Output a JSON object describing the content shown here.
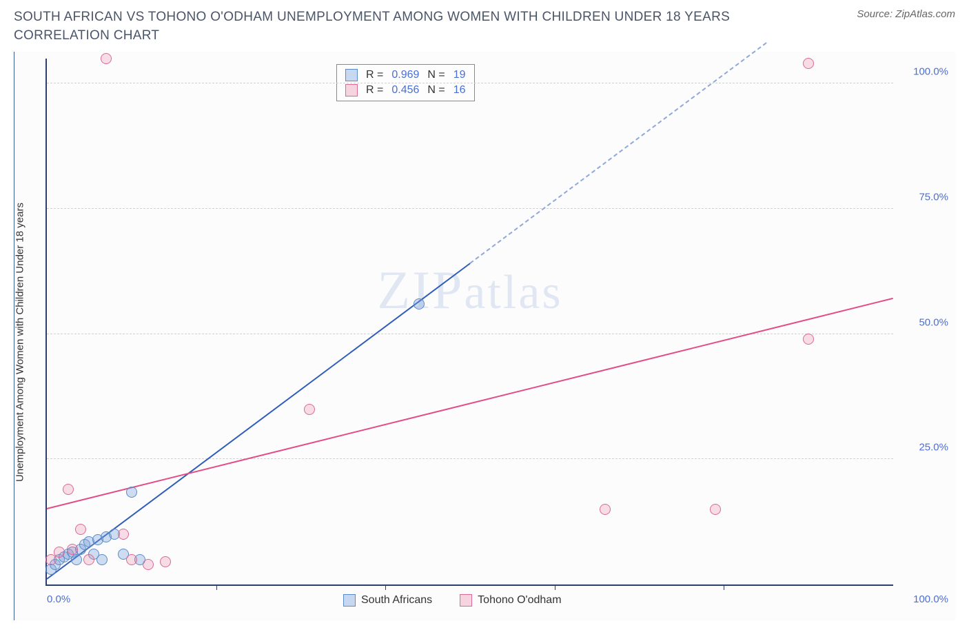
{
  "header": {
    "title": "SOUTH AFRICAN VS TOHONO O'ODHAM UNEMPLOYMENT AMONG WOMEN WITH CHILDREN UNDER 18 YEARS CORRELATION CHART",
    "source_prefix": "Source: ",
    "source_name": "ZipAtlas.com"
  },
  "chart": {
    "type": "scatter",
    "y_axis_label": "Unemployment Among Women with Children Under 18 years",
    "x_range": [
      0,
      100
    ],
    "y_range": [
      0,
      105
    ],
    "y_ticks": [
      {
        "value": 25,
        "label": "25.0%"
      },
      {
        "value": 50,
        "label": "50.0%"
      },
      {
        "value": 75,
        "label": "75.0%"
      },
      {
        "value": 100,
        "label": "100.0%"
      }
    ],
    "x_ticks_minor": [
      20,
      40,
      60,
      80
    ],
    "x_tick_labels": {
      "min": "0.0%",
      "max": "100.0%"
    },
    "background_color": "#fcfcfd",
    "grid_color": "#d0d0d0",
    "axis_color": "#2c3e6b",
    "tick_label_color": "#4a6fd4",
    "series": [
      {
        "name": "South Africans",
        "color_fill": "rgba(120,160,220,0.35)",
        "color_stroke": "#5a8ac8",
        "line_color": "#2e5cb8",
        "R": "0.969",
        "N": "19",
        "points": [
          {
            "x": 0.5,
            "y": 3
          },
          {
            "x": 1,
            "y": 4
          },
          {
            "x": 1.5,
            "y": 5
          },
          {
            "x": 2,
            "y": 5.5
          },
          {
            "x": 2.5,
            "y": 6
          },
          {
            "x": 3,
            "y": 6.5
          },
          {
            "x": 3.5,
            "y": 5
          },
          {
            "x": 4,
            "y": 7
          },
          {
            "x": 4.5,
            "y": 8
          },
          {
            "x": 5,
            "y": 8.5
          },
          {
            "x": 5.5,
            "y": 6
          },
          {
            "x": 6,
            "y": 9
          },
          {
            "x": 6.5,
            "y": 5
          },
          {
            "x": 7,
            "y": 9.5
          },
          {
            "x": 8,
            "y": 10
          },
          {
            "x": 9,
            "y": 6
          },
          {
            "x": 10,
            "y": 18.5
          },
          {
            "x": 11,
            "y": 5
          },
          {
            "x": 44,
            "y": 56
          }
        ],
        "trend": {
          "x1": 0,
          "y1": 1,
          "x2": 50,
          "y2": 64,
          "dash_to_x": 85,
          "dash_to_y": 108
        }
      },
      {
        "name": "Tohono O'odham",
        "color_fill": "rgba(230,120,160,0.25)",
        "color_stroke": "#d86a95",
        "line_color": "#e24d85",
        "R": "0.456",
        "N": "16",
        "points": [
          {
            "x": 0.5,
            "y": 5
          },
          {
            "x": 1.5,
            "y": 6.5
          },
          {
            "x": 2.5,
            "y": 19
          },
          {
            "x": 3,
            "y": 7
          },
          {
            "x": 4,
            "y": 11
          },
          {
            "x": 5,
            "y": 5
          },
          {
            "x": 7,
            "y": 105
          },
          {
            "x": 9,
            "y": 10
          },
          {
            "x": 10,
            "y": 5
          },
          {
            "x": 12,
            "y": 4
          },
          {
            "x": 14,
            "y": 4.5
          },
          {
            "x": 31,
            "y": 35
          },
          {
            "x": 66,
            "y": 15
          },
          {
            "x": 79,
            "y": 15
          },
          {
            "x": 90,
            "y": 49
          },
          {
            "x": 90,
            "y": 104
          }
        ],
        "trend": {
          "x1": 0,
          "y1": 15,
          "x2": 100,
          "y2": 57
        }
      }
    ],
    "stats_box": {
      "rows": [
        {
          "swatch": "blue",
          "r_label": "R =",
          "r_value": "0.969",
          "n_label": "N =",
          "n_value": "19"
        },
        {
          "swatch": "pink",
          "r_label": "R =",
          "r_value": "0.456",
          "n_label": "N =",
          "n_value": "16"
        }
      ]
    },
    "legend": [
      {
        "swatch": "blue",
        "label": "South Africans"
      },
      {
        "swatch": "pink",
        "label": "Tohono O'odham"
      }
    ],
    "watermark": {
      "part1": "ZIP",
      "part2": "atlas"
    }
  }
}
